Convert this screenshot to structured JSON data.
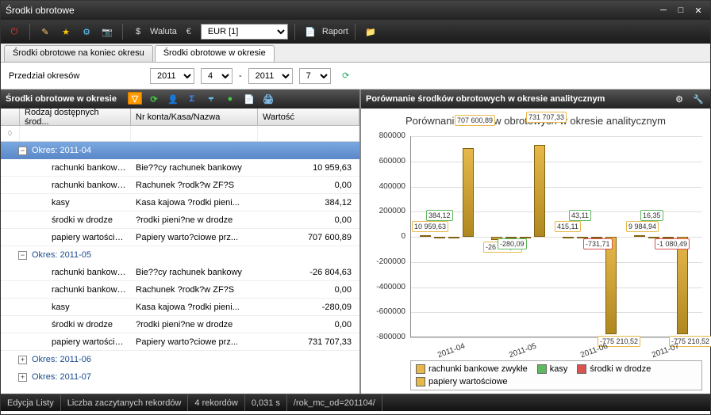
{
  "window": {
    "title": "Środki obrotowe"
  },
  "toolbar": {
    "currency_label": "Waluta",
    "currency_value": "EUR [1]",
    "report_label": "Raport"
  },
  "tabs": [
    {
      "label": "Środki obrotowe na koniec okresu",
      "active": false
    },
    {
      "label": "Środki obrotowe w okresie",
      "active": true
    }
  ],
  "filter": {
    "label": "Przedział okresów",
    "year1": "2011",
    "month1": "4",
    "year2": "2011",
    "month2": "7",
    "sep": "-"
  },
  "left_panel": {
    "title": "Środki obrotowe w okresie",
    "columns": [
      "",
      "Rodzaj dostępnych środ...",
      "Nr konta/Kasa/Nazwa",
      "Wartość"
    ]
  },
  "groups": [
    {
      "label": "Okres: 2011-04",
      "expanded": true,
      "selected": true,
      "rows": [
        {
          "a": "rachunki bankowe z...",
          "b": "Bie??cy rachunek bankowy",
          "v": "10 959,63"
        },
        {
          "a": "rachunki bankowe ZFŚS",
          "b": "Rachunek ?rodk?w ZF?S",
          "v": "0,00"
        },
        {
          "a": "kasy",
          "b": "Kasa kajowa ?rodki pieni...",
          "v": "384,12"
        },
        {
          "a": "środki w drodze",
          "b": "?rodki pieni?ne w drodze",
          "v": "0,00"
        },
        {
          "a": "papiery wartościowe",
          "b": "Papiery warto?ciowe prz...",
          "v": "707 600,89"
        }
      ]
    },
    {
      "label": "Okres: 2011-05",
      "expanded": true,
      "selected": false,
      "rows": [
        {
          "a": "rachunki bankowe z...",
          "b": "Bie??cy rachunek bankowy",
          "v": "-26 804,63"
        },
        {
          "a": "rachunki bankowe ZFŚS",
          "b": "Rachunek ?rodk?w ZF?S",
          "v": "0,00"
        },
        {
          "a": "kasy",
          "b": "Kasa kajowa ?rodki pieni...",
          "v": "-280,09"
        },
        {
          "a": "środki w drodze",
          "b": "?rodki pieni?ne w drodze",
          "v": "0,00"
        },
        {
          "a": "papiery wartościowe",
          "b": "Papiery warto?ciowe prz...",
          "v": "731 707,33"
        }
      ]
    },
    {
      "label": "Okres: 2011-06",
      "expanded": false,
      "selected": false,
      "rows": []
    },
    {
      "label": "Okres: 2011-07",
      "expanded": false,
      "selected": false,
      "rows": []
    }
  ],
  "right_panel": {
    "title": "Porównanie środków obrotowych w okresie analitycznym",
    "chart_title": "Porównanie środków obrotowych w okresie analitycznym"
  },
  "chart": {
    "ymin": -800000,
    "ymax": 800000,
    "ystep": 200000,
    "categories": [
      "2011-04",
      "2011-05",
      "2011-06",
      "2011-07"
    ],
    "series": [
      {
        "name": "rachunki bankowe zwykłe",
        "color": "#e6b84a"
      },
      {
        "name": "kasy",
        "color": "#5fb85f"
      },
      {
        "name": "środki w drodze",
        "color": "#d9534f"
      },
      {
        "name": "papiery wartościowe",
        "color": "#e6b84a"
      }
    ],
    "data": [
      [
        10959.63,
        384.12,
        0,
        707600.89
      ],
      [
        -26804.63,
        -280.09,
        0,
        731707.33
      ],
      [
        415.11,
        43.11,
        -731.71,
        -775210.52
      ],
      [
        9984.94,
        16.35,
        -1080.49,
        -775210.52
      ]
    ],
    "labels": [
      [
        "10 959,63",
        "384,12",
        null,
        "707 600,89"
      ],
      [
        "-26 804,63",
        "-280,09",
        null,
        "731 707,33"
      ],
      [
        "415,11",
        "43,11",
        "-731,71",
        "-775 210,52"
      ],
      [
        "9 984,94",
        "16,35",
        "-1 080,49",
        "-775 210,52"
      ]
    ],
    "label_colors": [
      "#e6b84a",
      "#5fb85f",
      "#d9534f",
      "#e6b84a"
    ]
  },
  "status": {
    "c1": "Edycja Listy",
    "c2": "Liczba zaczytanych rekordów",
    "c3": "4 rekordów",
    "c4": "0,031 s",
    "c5": "/rok_mc_od=201104/"
  }
}
